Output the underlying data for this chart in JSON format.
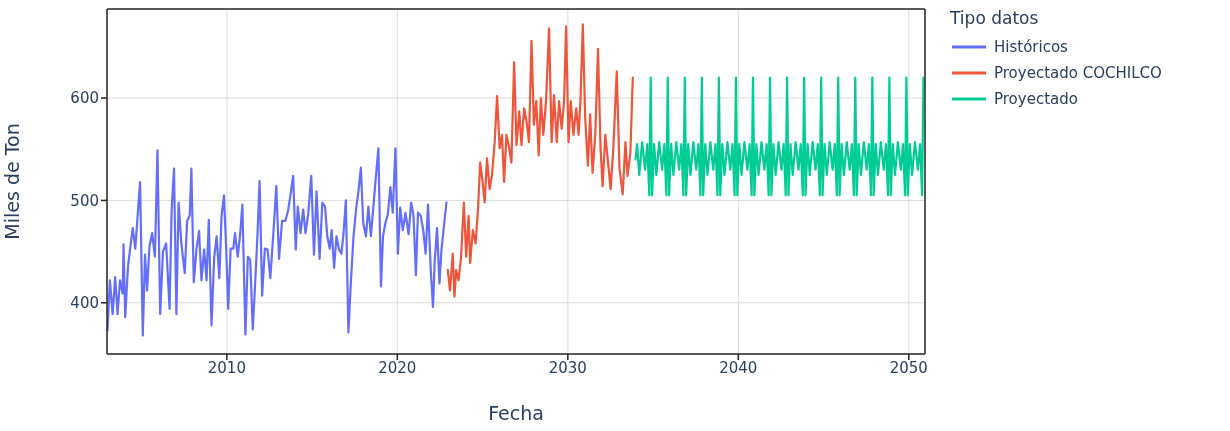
{
  "chart_data": {
    "type": "line",
    "xlabel": "Fecha",
    "ylabel": "Miles de Ton",
    "legend_title": "Tipo datos",
    "legend": "top right",
    "grid": true,
    "xlim": [
      2002.97,
      2050.95
    ],
    "xticks": [
      2010,
      2020,
      2030,
      2040,
      2050
    ],
    "ylim": [
      350,
      687
    ],
    "yticks": [
      400,
      500,
      600
    ],
    "series": [
      {
        "name": "Históricos",
        "color": "#636efa",
        "x": [
          2003.0,
          2003.14,
          2003.3,
          2003.45,
          2003.59,
          2003.73,
          2003.89,
          2003.94,
          2004.04,
          2004.2,
          2004.32,
          2004.48,
          2004.63,
          2004.77,
          2004.91,
          2005.07,
          2005.2,
          2005.32,
          2005.46,
          2005.62,
          2005.78,
          2005.93,
          2006.09,
          2006.25,
          2006.44,
          2006.64,
          2006.76,
          2006.9,
          2007.04,
          2007.17,
          2007.33,
          2007.53,
          2007.67,
          2007.82,
          2007.92,
          2008.06,
          2008.22,
          2008.37,
          2008.51,
          2008.67,
          2008.81,
          2008.94,
          2009.1,
          2009.26,
          2009.4,
          2009.56,
          2009.69,
          2009.83,
          2009.95,
          2010.08,
          2010.22,
          2010.38,
          2010.48,
          2010.64,
          2010.78,
          2010.91,
          2011.09,
          2011.23,
          2011.37,
          2011.52,
          2011.66,
          2011.8,
          2011.92,
          2012.07,
          2012.23,
          2012.39,
          2012.55,
          2012.74,
          2012.9,
          2013.06,
          2013.24,
          2013.43,
          2013.59,
          2013.73,
          2013.89,
          2014.04,
          2014.16,
          2014.32,
          2014.48,
          2014.61,
          2014.77,
          2014.95,
          2015.11,
          2015.26,
          2015.44,
          2015.6,
          2015.76,
          2015.89,
          2016.03,
          2016.15,
          2016.29,
          2016.43,
          2016.58,
          2016.72,
          2016.84,
          2016.98,
          2017.13,
          2017.27,
          2017.43,
          2017.59,
          2017.72,
          2017.86,
          2018.0,
          2018.16,
          2018.3,
          2018.45,
          2018.59,
          2018.73,
          2018.89,
          2019.04,
          2019.16,
          2019.3,
          2019.44,
          2019.59,
          2019.73,
          2019.89,
          2020.03,
          2020.17,
          2020.32,
          2020.48,
          2020.66,
          2020.81,
          2020.95,
          2021.09,
          2021.21,
          2021.37,
          2021.52,
          2021.66,
          2021.8,
          2021.96,
          2022.09,
          2022.19,
          2022.33,
          2022.47,
          2022.59,
          2022.74,
          2022.88
        ],
        "values": [
          373,
          422,
          389,
          425,
          389,
          422,
          409,
          457,
          386,
          435,
          452,
          473,
          453,
          486,
          518,
          368,
          447,
          412,
          455,
          468,
          445,
          549,
          389,
          450,
          458,
          394,
          490,
          531,
          389,
          498,
          458,
          429,
          480,
          485,
          531,
          420,
          453,
          470,
          422,
          452,
          422,
          481,
          378,
          445,
          465,
          424,
          485,
          505,
          458,
          394,
          453,
          453,
          468,
          445,
          467,
          496,
          369,
          445,
          442,
          374,
          419,
          468,
          519,
          407,
          453,
          452,
          424,
          471,
          514,
          443,
          480,
          480,
          490,
          505,
          524,
          452,
          494,
          468,
          491,
          468,
          486,
          524,
          447,
          509,
          443,
          498,
          494,
          465,
          453,
          471,
          434,
          465,
          452,
          448,
          467,
          500,
          371,
          419,
          465,
          493,
          509,
          532,
          478,
          465,
          494,
          465,
          493,
          521,
          551,
          416,
          465,
          478,
          486,
          513,
          488,
          551,
          448,
          493,
          471,
          488,
          467,
          498,
          485,
          427,
          488,
          485,
          471,
          448,
          496,
          432,
          396,
          440,
          473,
          419,
          452,
          476,
          498
        ]
      },
      {
        "name": "Proyectado COCHILCO",
        "color": "#ef553b",
        "x": [
          2022.96,
          2023.09,
          2023.25,
          2023.35,
          2023.45,
          2023.59,
          2023.74,
          2023.9,
          2024.04,
          2024.18,
          2024.27,
          2024.43,
          2024.59,
          2024.73,
          2024.86,
          2024.98,
          2025.12,
          2025.26,
          2025.41,
          2025.55,
          2025.71,
          2025.85,
          2026.0,
          2026.14,
          2026.26,
          2026.4,
          2026.53,
          2026.69,
          2026.85,
          2026.99,
          2027.15,
          2027.28,
          2027.44,
          2027.58,
          2027.72,
          2027.87,
          2028.01,
          2028.15,
          2028.29,
          2028.42,
          2028.56,
          2028.72,
          2028.9,
          2029.05,
          2029.19,
          2029.35,
          2029.49,
          2029.64,
          2029.78,
          2029.9,
          2030.04,
          2030.17,
          2030.33,
          2030.49,
          2030.63,
          2030.74,
          2030.88,
          2031.02,
          2031.18,
          2031.31,
          2031.45,
          2031.61,
          2031.77,
          2031.92,
          2032.04,
          2032.2,
          2032.36,
          2032.51,
          2032.67,
          2032.87,
          2033.03,
          2033.22,
          2033.38,
          2033.5,
          2033.67,
          2033.81
        ],
        "values": [
          432,
          412,
          448,
          406,
          432,
          422,
          445,
          498,
          445,
          485,
          439,
          471,
          458,
          491,
          537,
          521,
          498,
          541,
          511,
          524,
          557,
          602,
          551,
          564,
          518,
          564,
          554,
          537,
          635,
          554,
          587,
          554,
          590,
          577,
          557,
          656,
          574,
          597,
          544,
          600,
          564,
          597,
          668,
          557,
          603,
          557,
          597,
          570,
          597,
          670,
          557,
          597,
          564,
          590,
          564,
          597,
          672,
          580,
          534,
          584,
          527,
          564,
          648,
          551,
          514,
          564,
          537,
          511,
          551,
          626,
          531,
          506,
          557,
          524,
          547,
          620
        ]
      },
      {
        "name": "Proyectado",
        "color": "#00cc96",
        "x": [
          2033.97,
          2034.06,
          2034.19,
          2034.36,
          2034.53,
          2034.66,
          2034.78,
          2034.86,
          2034.94,
          2035.06,
          2035.19,
          2035.36,
          2035.53,
          2035.66,
          2035.78,
          2035.86,
          2035.94,
          2036.06,
          2036.19,
          2036.36,
          2036.53,
          2036.66,
          2036.78,
          2036.86,
          2036.94,
          2037.06,
          2037.19,
          2037.36,
          2037.53,
          2037.66,
          2037.78,
          2037.86,
          2037.94,
          2038.06,
          2038.19,
          2038.36,
          2038.53,
          2038.66,
          2038.78,
          2038.86,
          2038.94,
          2039.06,
          2039.19,
          2039.36,
          2039.53,
          2039.66,
          2039.78,
          2039.86,
          2039.94,
          2040.06,
          2040.19,
          2040.36,
          2040.53,
          2040.66,
          2040.78,
          2040.86,
          2040.94,
          2041.06,
          2041.19,
          2041.36,
          2041.53,
          2041.66,
          2041.78,
          2041.86,
          2041.94,
          2042.06,
          2042.19,
          2042.36,
          2042.53,
          2042.66,
          2042.78,
          2042.86,
          2042.94,
          2043.06,
          2043.19,
          2043.36,
          2043.53,
          2043.66,
          2043.78,
          2043.86,
          2043.94,
          2044.06,
          2044.19,
          2044.36,
          2044.53,
          2044.66,
          2044.78,
          2044.86,
          2044.94,
          2045.06,
          2045.19,
          2045.36,
          2045.53,
          2045.66,
          2045.78,
          2045.86,
          2045.94,
          2046.06,
          2046.19,
          2046.36,
          2046.53,
          2046.66,
          2046.78,
          2046.86,
          2046.94,
          2047.06,
          2047.19,
          2047.36,
          2047.53,
          2047.66,
          2047.78,
          2047.86,
          2047.94,
          2048.06,
          2048.19,
          2048.36,
          2048.53,
          2048.66,
          2048.78,
          2048.86,
          2048.94,
          2049.06,
          2049.19,
          2049.36,
          2049.53,
          2049.66,
          2049.78,
          2049.86,
          2049.94,
          2050.06,
          2050.19,
          2050.36,
          2050.53,
          2050.66,
          2050.78,
          2050.86
        ],
        "values": [
          540,
          555,
          525,
          557,
          530,
          555,
          505,
          620,
          505,
          555,
          525,
          557,
          530,
          555,
          505,
          620,
          505,
          555,
          525,
          557,
          530,
          555,
          505,
          620,
          505,
          555,
          525,
          557,
          530,
          555,
          505,
          620,
          505,
          555,
          525,
          557,
          530,
          555,
          505,
          620,
          505,
          555,
          525,
          557,
          530,
          555,
          505,
          620,
          505,
          555,
          525,
          557,
          530,
          555,
          505,
          620,
          505,
          555,
          525,
          557,
          530,
          555,
          505,
          620,
          505,
          555,
          525,
          557,
          530,
          555,
          505,
          620,
          505,
          555,
          525,
          557,
          530,
          555,
          505,
          620,
          505,
          555,
          525,
          557,
          530,
          555,
          505,
          620,
          505,
          555,
          525,
          557,
          530,
          555,
          505,
          620,
          505,
          555,
          525,
          557,
          530,
          555,
          505,
          620,
          505,
          555,
          525,
          557,
          530,
          555,
          505,
          620,
          505,
          555,
          525,
          557,
          530,
          555,
          505,
          620,
          505,
          555,
          525,
          557,
          530,
          555,
          505,
          620,
          505,
          555,
          525,
          557,
          530,
          555,
          505,
          620
        ]
      }
    ]
  }
}
